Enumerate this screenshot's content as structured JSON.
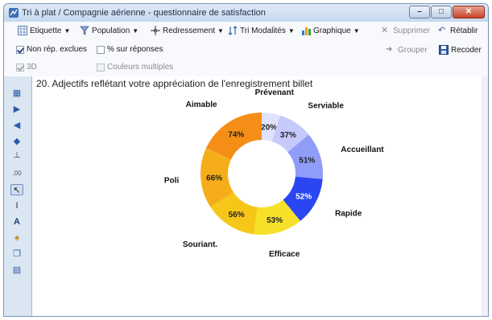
{
  "window": {
    "title": "Tri à plat / Compagnie aérienne - questionnaire de satisfaction",
    "minimize": "–",
    "maximize": "□",
    "close": "✕"
  },
  "toolbar": {
    "etiquette": "Etiquette",
    "population": "Population",
    "redressement": "Redressement",
    "tri_modalites": "Tri Modalités",
    "graphique": "Graphique",
    "supprimer": "Supprimer",
    "retablir": "Rétablir",
    "grouper": "Grouper",
    "recoder": "Recoder",
    "non_rep_exclues": "Non rép. exclues",
    "pct_sur_reponses": "% sur réponses",
    "three_d": "3D",
    "couleurs_multiples": "Couleurs multiples",
    "non_rep_exclues_checked": true,
    "pct_sur_reponses_checked": false,
    "three_d_checked": true,
    "couleurs_multiples_checked": false
  },
  "question_title": "20. Adjectifs reflétant votre appréciation de l'enregistrement billet",
  "chart_data": {
    "type": "pie",
    "subtype": "donut",
    "title": "20. Adjectifs reflétant votre appréciation de l'enregistrement billet",
    "slices": [
      {
        "label": "Prévenant",
        "value": 20,
        "value_label": "20%",
        "color": "#e0e2fb"
      },
      {
        "label": "Serviable",
        "value": 37,
        "value_label": "37%",
        "color": "#c5c9fb"
      },
      {
        "label": "Accueillant",
        "value": 51,
        "value_label": "51%",
        "color": "#8f9cf8"
      },
      {
        "label": "Rapide",
        "value": 52,
        "value_label": "52%",
        "color": "#2a46f2"
      },
      {
        "label": "Efficace",
        "value": 53,
        "value_label": "53%",
        "color": "#f7e02a"
      },
      {
        "label": "Souriant.",
        "value": 56,
        "value_label": "56%",
        "color": "#f6c718"
      },
      {
        "label": "Poli",
        "value": 66,
        "value_label": "66%",
        "color": "#f5ae1a"
      },
      {
        "label": "Aimable",
        "value": 74,
        "value_label": "74%",
        "color": "#f58e17"
      }
    ]
  }
}
